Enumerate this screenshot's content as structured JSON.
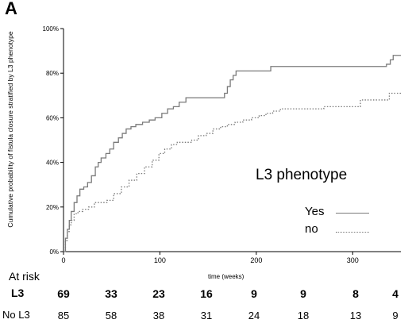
{
  "panel_label": "A",
  "legend": {
    "title": "L3 phenotype",
    "items": [
      {
        "label": "Yes",
        "style": "solid"
      },
      {
        "label": "no",
        "style": "dotted"
      }
    ]
  },
  "at_risk": {
    "header": "At risk",
    "rows": [
      {
        "name": "L3",
        "bold": true,
        "values": [
          "69",
          "33",
          "23",
          "16",
          "9",
          "9",
          "8",
          "4"
        ]
      },
      {
        "name": "No L3",
        "bold": false,
        "values": [
          "85",
          "58",
          "38",
          "31",
          "24",
          "18",
          "13",
          "9"
        ]
      }
    ]
  },
  "chart_data": {
    "type": "line",
    "title": "",
    "xlabel": "time (weeks)",
    "ylabel": "Cumulative probability of fistula closure stratified by L3 phenotype",
    "xlim": [
      0,
      350
    ],
    "ylim": [
      0,
      100
    ],
    "x_ticks": [
      "0",
      "100",
      "200",
      "300"
    ],
    "y_ticks": [
      "0%",
      "20%",
      "40%",
      "60%",
      "80%",
      "100%"
    ],
    "legend_position": "center-right",
    "grid": false,
    "series": [
      {
        "name": "Yes",
        "style": "solid",
        "color": "#7a7a7a",
        "points": [
          [
            0,
            0
          ],
          [
            2,
            6
          ],
          [
            4,
            10
          ],
          [
            6,
            14
          ],
          [
            8,
            18
          ],
          [
            11,
            22
          ],
          [
            14,
            25
          ],
          [
            17,
            28
          ],
          [
            21,
            29
          ],
          [
            25,
            31
          ],
          [
            29,
            34
          ],
          [
            33,
            38
          ],
          [
            36,
            40
          ],
          [
            39,
            42
          ],
          [
            44,
            44
          ],
          [
            48,
            46
          ],
          [
            52,
            49
          ],
          [
            57,
            51
          ],
          [
            61,
            53
          ],
          [
            65,
            55
          ],
          [
            70,
            56
          ],
          [
            75,
            57
          ],
          [
            82,
            58
          ],
          [
            89,
            59
          ],
          [
            95,
            60
          ],
          [
            102,
            62
          ],
          [
            108,
            64
          ],
          [
            114,
            65
          ],
          [
            120,
            67
          ],
          [
            127,
            69
          ],
          [
            135,
            69
          ],
          [
            145,
            69
          ],
          [
            155,
            69
          ],
          [
            162,
            69
          ],
          [
            167,
            71
          ],
          [
            170,
            74
          ],
          [
            173,
            77
          ],
          [
            176,
            79
          ],
          [
            179,
            81
          ],
          [
            186,
            81
          ],
          [
            197,
            81
          ],
          [
            210,
            81
          ],
          [
            215,
            83
          ],
          [
            240,
            83
          ],
          [
            260,
            83
          ],
          [
            280,
            83
          ],
          [
            300,
            83
          ],
          [
            320,
            83
          ],
          [
            335,
            84
          ],
          [
            339,
            86
          ],
          [
            342,
            88
          ],
          [
            350,
            88
          ]
        ]
      },
      {
        "name": "no",
        "style": "dotted",
        "color": "#7a7a7a",
        "points": [
          [
            0,
            0
          ],
          [
            2,
            5
          ],
          [
            4,
            9
          ],
          [
            6,
            12
          ],
          [
            8,
            14
          ],
          [
            11,
            17
          ],
          [
            15,
            18
          ],
          [
            20,
            19
          ],
          [
            26,
            20
          ],
          [
            32,
            22
          ],
          [
            40,
            22
          ],
          [
            45,
            23
          ],
          [
            52,
            26
          ],
          [
            60,
            29
          ],
          [
            68,
            32
          ],
          [
            76,
            35
          ],
          [
            84,
            38
          ],
          [
            92,
            41
          ],
          [
            99,
            44
          ],
          [
            105,
            46
          ],
          [
            112,
            48
          ],
          [
            118,
            49
          ],
          [
            125,
            49
          ],
          [
            133,
            50
          ],
          [
            140,
            52
          ],
          [
            148,
            53
          ],
          [
            155,
            55
          ],
          [
            163,
            56
          ],
          [
            170,
            57
          ],
          [
            178,
            58
          ],
          [
            186,
            59
          ],
          [
            195,
            60
          ],
          [
            203,
            61
          ],
          [
            210,
            62
          ],
          [
            217,
            63
          ],
          [
            225,
            64
          ],
          [
            240,
            64
          ],
          [
            255,
            64
          ],
          [
            270,
            65
          ],
          [
            290,
            65
          ],
          [
            308,
            68
          ],
          [
            325,
            68
          ],
          [
            338,
            71
          ],
          [
            350,
            71
          ]
        ]
      }
    ]
  }
}
